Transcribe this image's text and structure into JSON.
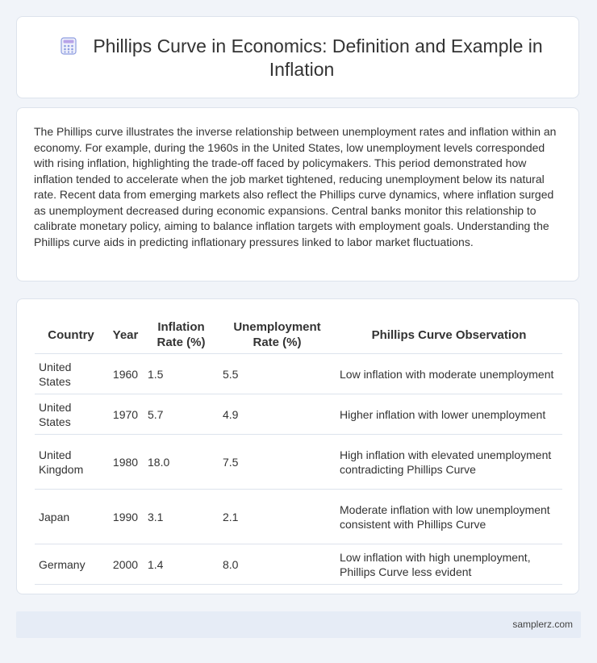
{
  "header": {
    "title": "Phillips Curve in Economics: Definition and Example in Inflation",
    "icon": "calculator-icon",
    "icon_color": "#7b8fd6"
  },
  "intro": {
    "text": "The Phillips curve illustrates the inverse relationship between unemployment rates and inflation within an economy. For example, during the 1960s in the United States, low unemployment levels corresponded with rising inflation, highlighting the trade-off faced by policymakers. This period demonstrated how inflation tended to accelerate when the job market tightened, reducing unemployment below its natural rate. Recent data from emerging markets also reflect the Phillips curve dynamics, where inflation surged as unemployment decreased during economic expansions. Central banks monitor this relationship to calibrate monetary policy, aiming to balance inflation targets with employment goals. Understanding the Phillips curve aids in predicting inflationary pressures linked to labor market fluctuations."
  },
  "table": {
    "headers": [
      "Country",
      "Year",
      "Inflation Rate (%)",
      "Unemployment Rate (%)",
      "Phillips Curve Observation"
    ],
    "rows": [
      {
        "country": "United States",
        "year": "1960",
        "inflation": "1.5",
        "unemployment": "5.5",
        "observation": "Low inflation with moderate unemployment"
      },
      {
        "country": "United States",
        "year": "1970",
        "inflation": "5.7",
        "unemployment": "4.9",
        "observation": "Higher inflation with lower unemployment"
      },
      {
        "country": "United Kingdom",
        "year": "1980",
        "inflation": "18.0",
        "unemployment": "7.5",
        "observation": "High inflation with elevated unemployment contradicting Phillips Curve"
      },
      {
        "country": "Japan",
        "year": "1990",
        "inflation": "3.1",
        "unemployment": "2.1",
        "observation": "Moderate inflation with low unemployment consistent with Phillips Curve"
      },
      {
        "country": "Germany",
        "year": "2000",
        "inflation": "1.4",
        "unemployment": "8.0",
        "observation": "Low inflation with high unemployment, Phillips Curve less evident"
      }
    ]
  },
  "footer": {
    "site": "samplerz.com"
  }
}
